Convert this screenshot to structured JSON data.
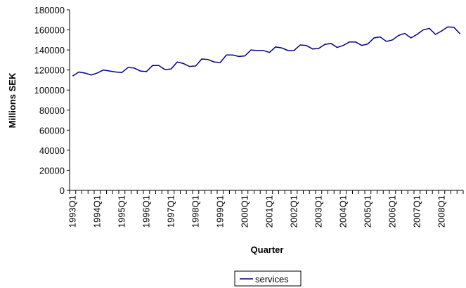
{
  "chart_data": {
    "type": "line",
    "y_label": "Millions SEK",
    "x_label": "Quarter",
    "categories": [
      "1993Q1",
      null,
      null,
      null,
      "1994Q1",
      null,
      null,
      null,
      "1995Q1",
      null,
      null,
      null,
      "1996Q1",
      null,
      null,
      null,
      "1997Q1",
      null,
      null,
      null,
      "1998Q1",
      null,
      null,
      null,
      "1999Q1",
      null,
      null,
      null,
      "2000Q1",
      null,
      null,
      null,
      "2001Q1",
      null,
      null,
      null,
      "2002Q1",
      null,
      null,
      null,
      "2003Q1",
      null,
      null,
      null,
      "2004Q1",
      null,
      null,
      null,
      "2005Q1",
      null,
      null,
      null,
      "2006Q1",
      null,
      null,
      null,
      "2007Q1",
      null,
      null,
      null,
      "2008Q1",
      null,
      null,
      null
    ],
    "series": [
      {
        "name": "services",
        "color": "#000080",
        "values": [
          114000,
          118000,
          117000,
          115000,
          117000,
          120000,
          119000,
          118000,
          117500,
          122500,
          122000,
          119000,
          118500,
          124500,
          124500,
          120500,
          121000,
          128000,
          126500,
          123500,
          124000,
          131000,
          130500,
          128000,
          127500,
          135000,
          135000,
          133500,
          134000,
          140000,
          139500,
          139500,
          137500,
          143000,
          142000,
          139500,
          139500,
          145000,
          144500,
          141000,
          141500,
          145500,
          146500,
          142500,
          144500,
          148000,
          148000,
          144500,
          146000,
          152000,
          153000,
          148500,
          150000,
          154500,
          156500,
          152000,
          155500,
          160000,
          161500,
          155500,
          159000,
          163000,
          162500,
          156000
        ]
      }
    ],
    "ylim": [
      0,
      180000
    ],
    "yticks": [
      0,
      20000,
      40000,
      60000,
      80000,
      100000,
      120000,
      140000,
      160000,
      180000
    ],
    "legend": "bottom"
  }
}
